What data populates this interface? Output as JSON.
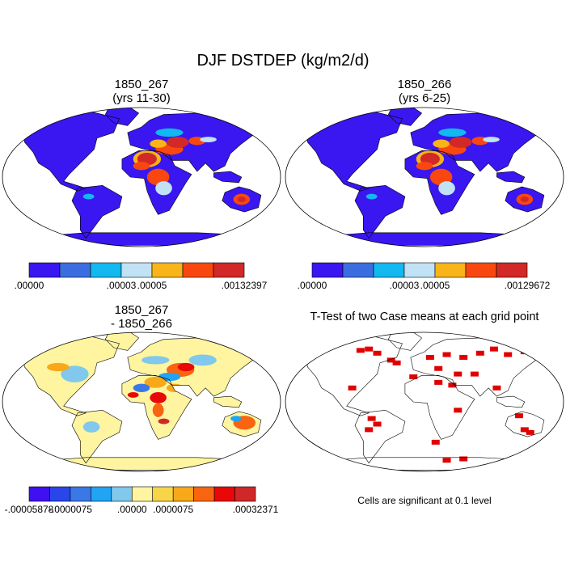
{
  "title": "DJF DSTDEP (kg/m2/d)",
  "panels": [
    {
      "title_line1": "1850_267",
      "title_line2": "(yrs 11-30)",
      "colorbar": {
        "colors": [
          "#3a16f0",
          "#3a6ee0",
          "#12b8f0",
          "#c0e2f4",
          "#f8b418",
          "#f84810",
          "#d22828"
        ],
        "labels": [
          ".00000",
          ".00003",
          ".00005",
          ".00132397"
        ],
        "label_boundaries": [
          0,
          3,
          4,
          7
        ]
      }
    },
    {
      "title_line1": "1850_266",
      "title_line2": "(yrs 6-25)",
      "colorbar": {
        "colors": [
          "#3a16f0",
          "#3a6ee0",
          "#12b8f0",
          "#c0e2f4",
          "#f8b418",
          "#f84810",
          "#d22828"
        ],
        "labels": [
          ".00000",
          ".00003",
          ".00005",
          ".00129672"
        ],
        "label_boundaries": [
          0,
          3,
          4,
          7
        ]
      }
    },
    {
      "title_line1": "1850_267",
      "title_line2": "- 1850_266",
      "colorbar": {
        "colors": [
          "#4010f0",
          "#2a46e8",
          "#3a78e8",
          "#20a4f4",
          "#80c8ec",
          "#fff4a0",
          "#f8d448",
          "#f8a818",
          "#f86410",
          "#e80808",
          "#d02828"
        ],
        "labels": [
          "-.00005878",
          "-.0000075",
          ".00000",
          ".0000075",
          ".00032371"
        ],
        "label_boundaries": [
          0,
          2,
          5,
          7,
          11
        ]
      }
    },
    {
      "title_line1": "T-Test of two Case means at each grid point",
      "note": "Cells are significant at 0.1 level"
    }
  ]
}
